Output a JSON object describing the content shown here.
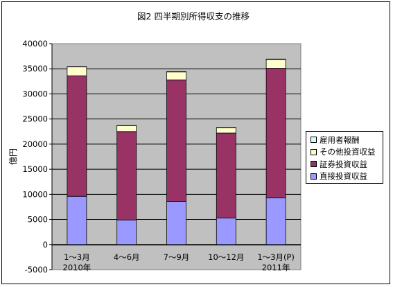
{
  "chart_data": {
    "type": "bar",
    "stacked": true,
    "title": "図2  四半期別所得収支の推移",
    "ylabel": "億円",
    "ylim": [
      -5000,
      40000
    ],
    "yticks": [
      -5000,
      0,
      5000,
      10000,
      15000,
      20000,
      25000,
      30000,
      35000,
      40000
    ],
    "grid": true,
    "legend_position": "right",
    "categories": [
      {
        "line1": "1～3月",
        "line2": "2010年"
      },
      {
        "line1": "4～6月",
        "line2": ""
      },
      {
        "line1": "7～9月",
        "line2": ""
      },
      {
        "line1": "10～12月",
        "line2": ""
      },
      {
        "line1": "1～3月(P)",
        "line2": "2011年"
      }
    ],
    "series": [
      {
        "name": "直接投資収益",
        "color": "#9999ff",
        "values": [
          9600,
          4900,
          8600,
          5300,
          9300
        ]
      },
      {
        "name": "証券投資収益",
        "color": "#993366",
        "values": [
          24000,
          17600,
          24200,
          16900,
          25800
        ]
      },
      {
        "name": "その他投資収益",
        "color": "#ffffcc",
        "values": [
          1800,
          1200,
          1600,
          1100,
          1800
        ]
      },
      {
        "name": "雇用者報酬",
        "color": "#ccffff",
        "values": [
          30,
          30,
          30,
          30,
          30
        ]
      }
    ],
    "legend_order": [
      3,
      2,
      1,
      0
    ]
  }
}
